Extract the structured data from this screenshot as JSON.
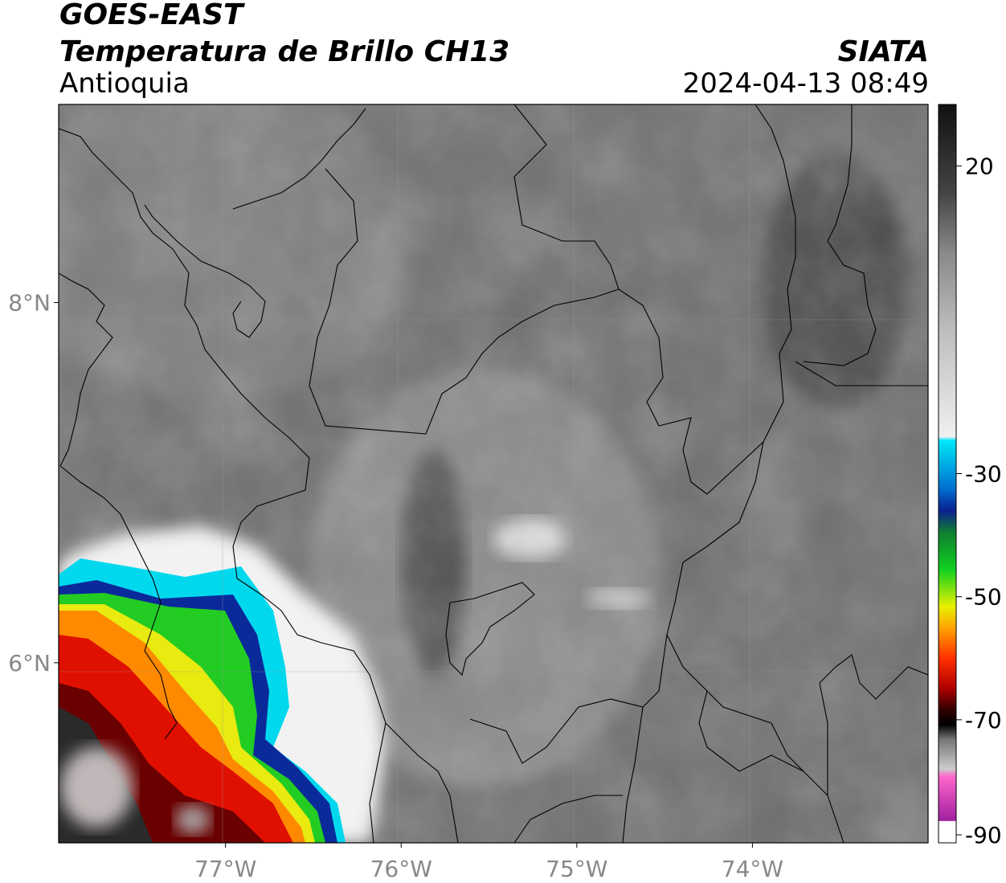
{
  "header": {
    "satellite": "GOES-EAST",
    "product": "Temperatura de Brillo CH13",
    "region": "Antioquia",
    "agency": "SIATA",
    "datetime": "2024-04-13 08:49"
  },
  "map": {
    "lon_range": [
      -77.95,
      -73.0
    ],
    "lat_range": [
      5.0,
      9.1
    ],
    "x_ticks": [
      {
        "lon": -77,
        "label": "77°W"
      },
      {
        "lon": -76,
        "label": "76°W"
      },
      {
        "lon": -75,
        "label": "75°W"
      },
      {
        "lon": -74,
        "label": "74°W"
      }
    ],
    "y_ticks": [
      {
        "lat": 8,
        "label": "8°N"
      },
      {
        "lat": 6,
        "label": "6°N"
      }
    ],
    "grid": true
  },
  "colorbar": {
    "range": [
      -90,
      30
    ],
    "ticks": [
      {
        "value": 20,
        "label": "20"
      },
      {
        "value": -30,
        "label": "-30"
      },
      {
        "value": -50,
        "label": "-50"
      },
      {
        "value": -70,
        "label": "-70"
      },
      {
        "value": -90,
        "label": "-90"
      }
    ],
    "colors": {
      "warm_top": "#111111",
      "mid_gray": "#7a7a7a",
      "light_gray": "#e8e8e8",
      "cyan": "#00e0f0",
      "blue": "#0a2a9a",
      "green": "#10c020",
      "yellow": "#f0f000",
      "orange": "#ff8c00",
      "red": "#e00000",
      "dark_red": "#600000",
      "black": "#000000",
      "pink": "#ff66cc",
      "magenta": "#a020a0"
    }
  }
}
